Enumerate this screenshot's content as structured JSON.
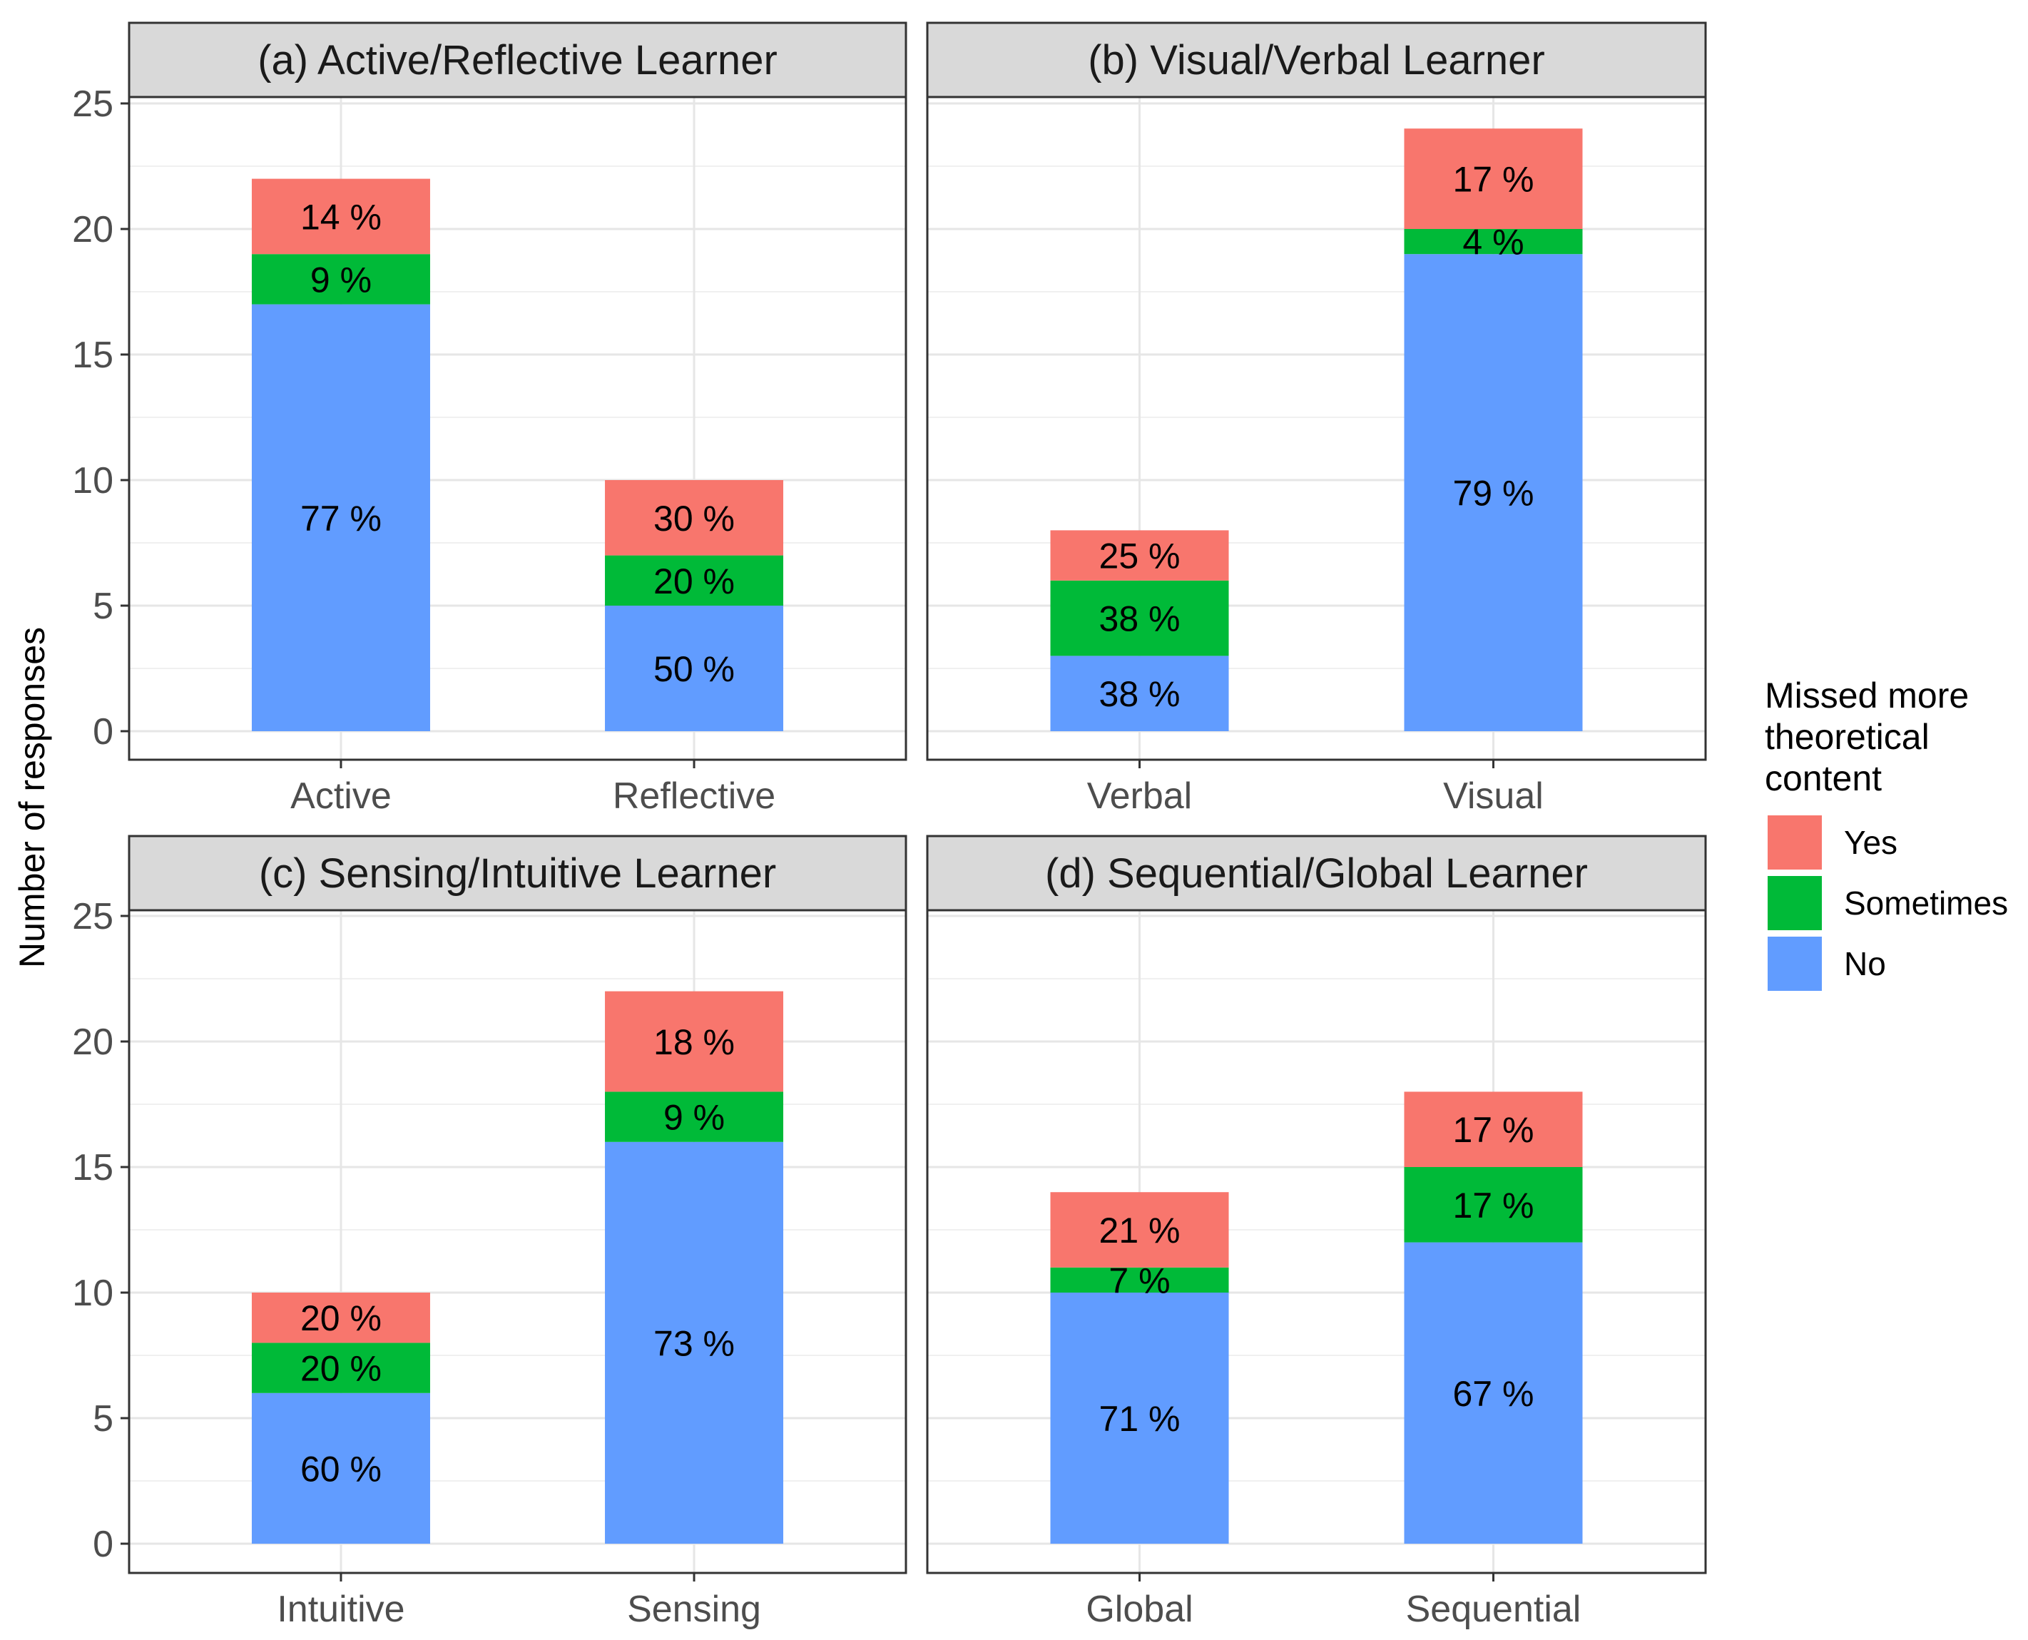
{
  "chart_data": {
    "type": "bar",
    "stacked": true,
    "ylabel": "Number of responses",
    "ylim": [
      0,
      25
    ],
    "yticks": [
      0,
      5,
      10,
      15,
      20,
      25
    ],
    "grid": true,
    "legend": {
      "title_lines": [
        "Missed more",
        "theoretical",
        "content"
      ],
      "placement": "right",
      "entries": [
        {
          "name": "Yes",
          "color": "#F8766D"
        },
        {
          "name": "Sometimes",
          "color": "#00BA38"
        },
        {
          "name": "No",
          "color": "#619CFF"
        }
      ]
    },
    "panels": [
      {
        "title": "(a) Active/Reflective Learner",
        "categories": [
          "Active",
          "Reflective"
        ],
        "series": [
          {
            "name": "No",
            "values": [
              17,
              5
            ],
            "labels": [
              "77 %",
              "50 %"
            ]
          },
          {
            "name": "Sometimes",
            "values": [
              2,
              2
            ],
            "labels": [
              "9 %",
              "20 %"
            ]
          },
          {
            "name": "Yes",
            "values": [
              3,
              3
            ],
            "labels": [
              "14 %",
              "30 %"
            ]
          }
        ]
      },
      {
        "title": "(b) Visual/Verbal Learner",
        "categories": [
          "Verbal",
          "Visual"
        ],
        "series": [
          {
            "name": "No",
            "values": [
              3,
              19
            ],
            "labels": [
              "38 %",
              "79 %"
            ]
          },
          {
            "name": "Sometimes",
            "values": [
              3,
              1
            ],
            "labels": [
              "38 %",
              "4 %"
            ]
          },
          {
            "name": "Yes",
            "values": [
              2,
              4
            ],
            "labels": [
              "25 %",
              "17 %"
            ]
          }
        ]
      },
      {
        "title": "(c) Sensing/Intuitive Learner",
        "categories": [
          "Intuitive",
          "Sensing"
        ],
        "series": [
          {
            "name": "No",
            "values": [
              6,
              16
            ],
            "labels": [
              "60 %",
              "73 %"
            ]
          },
          {
            "name": "Sometimes",
            "values": [
              2,
              2
            ],
            "labels": [
              "20 %",
              "9 %"
            ]
          },
          {
            "name": "Yes",
            "values": [
              2,
              4
            ],
            "labels": [
              "20 %",
              "18 %"
            ]
          }
        ]
      },
      {
        "title": "(d) Sequential/Global Learner",
        "categories": [
          "Global",
          "Sequential"
        ],
        "series": [
          {
            "name": "No",
            "values": [
              10,
              12
            ],
            "labels": [
              "71 %",
              "67 %"
            ]
          },
          {
            "name": "Sometimes",
            "values": [
              1,
              3
            ],
            "labels": [
              "7 %",
              "17 %"
            ]
          },
          {
            "name": "Yes",
            "values": [
              3,
              3
            ],
            "labels": [
              "21 %",
              "17 %"
            ]
          }
        ]
      }
    ]
  }
}
